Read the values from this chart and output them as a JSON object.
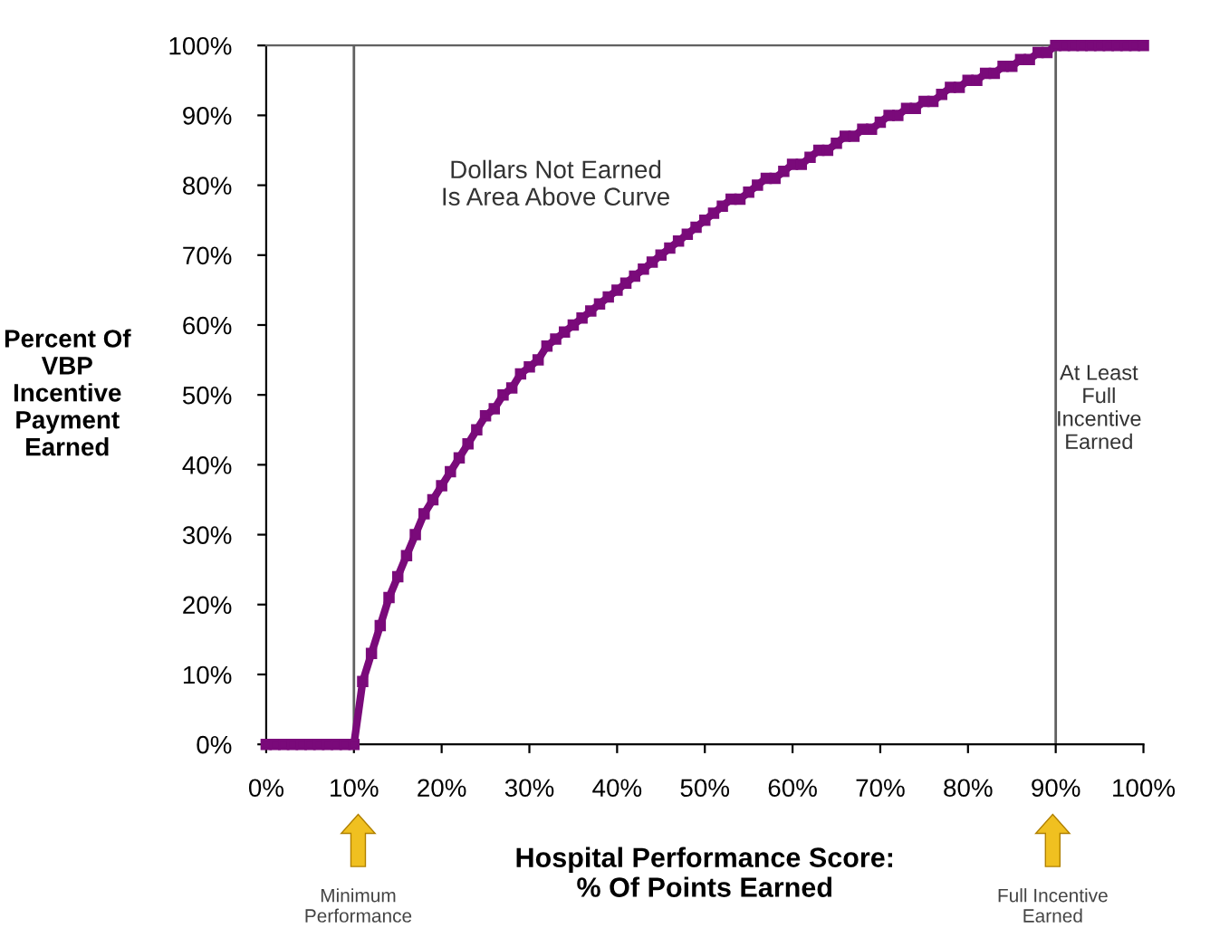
{
  "chart_data": {
    "type": "line",
    "xlabel": "Hospital Performance Score:\n% Of Points Earned",
    "ylabel": "Percent Of\nVBP\nIncentive\nPayment\nEarned",
    "x": [
      0,
      1,
      2,
      3,
      4,
      5,
      6,
      7,
      8,
      9,
      10,
      11,
      12,
      13,
      14,
      15,
      16,
      17,
      18,
      19,
      20,
      21,
      22,
      23,
      24,
      25,
      26,
      27,
      28,
      29,
      30,
      31,
      32,
      33,
      34,
      35,
      36,
      37,
      38,
      39,
      40,
      41,
      42,
      43,
      44,
      45,
      46,
      47,
      48,
      49,
      50,
      51,
      52,
      53,
      54,
      55,
      56,
      57,
      58,
      59,
      60,
      61,
      62,
      63,
      64,
      65,
      66,
      67,
      68,
      69,
      70,
      71,
      72,
      73,
      74,
      75,
      76,
      77,
      78,
      79,
      80,
      81,
      82,
      83,
      84,
      85,
      86,
      87,
      88,
      89,
      90,
      91,
      92,
      93,
      94,
      95,
      96,
      97,
      98,
      99,
      100
    ],
    "series": [
      {
        "color": "#7a0a7a",
        "values": [
          0,
          0,
          0,
          0,
          0,
          0,
          0,
          0,
          0,
          0,
          0,
          9,
          13,
          17,
          21,
          24,
          27,
          30,
          33,
          35,
          37,
          39,
          41,
          43,
          45,
          47,
          48,
          50,
          51,
          53,
          54,
          55,
          57,
          58,
          59,
          60,
          61,
          62,
          63,
          64,
          65,
          66,
          67,
          68,
          69,
          70,
          71,
          72,
          73,
          74,
          75,
          76,
          77,
          78,
          78,
          79,
          80,
          81,
          81,
          82,
          83,
          83,
          84,
          85,
          85,
          86,
          87,
          87,
          88,
          88,
          89,
          90,
          90,
          91,
          91,
          92,
          92,
          93,
          94,
          94,
          95,
          95,
          96,
          96,
          97,
          97,
          98,
          98,
          99,
          99,
          100,
          100,
          100,
          100,
          100,
          100,
          100,
          100,
          100,
          100,
          100
        ]
      }
    ],
    "marker": "square",
    "line_style": "solid",
    "xlim": [
      0,
      100
    ],
    "ylim": [
      0,
      100
    ],
    "xticks": [
      {
        "value": 0,
        "label": "0%"
      },
      {
        "value": 10,
        "label": "10%"
      },
      {
        "value": 20,
        "label": "20%"
      },
      {
        "value": 30,
        "label": "30%"
      },
      {
        "value": 40,
        "label": "40%"
      },
      {
        "value": 50,
        "label": "50%"
      },
      {
        "value": 60,
        "label": "60%"
      },
      {
        "value": 70,
        "label": "70%"
      },
      {
        "value": 80,
        "label": "80%"
      },
      {
        "value": 90,
        "label": "90%"
      },
      {
        "value": 100,
        "label": "100%"
      }
    ],
    "yticks": [
      {
        "value": 0,
        "label": "0%"
      },
      {
        "value": 10,
        "label": "10%"
      },
      {
        "value": 20,
        "label": "20%"
      },
      {
        "value": 30,
        "label": "30%"
      },
      {
        "value": 40,
        "label": "40%"
      },
      {
        "value": 50,
        "label": "50%"
      },
      {
        "value": 60,
        "label": "60%"
      },
      {
        "value": 70,
        "label": "70%"
      },
      {
        "value": 80,
        "label": "80%"
      },
      {
        "value": 90,
        "label": "90%"
      },
      {
        "value": 100,
        "label": "100%"
      }
    ],
    "ref_lines": [
      {
        "axis": "x",
        "value": 10,
        "color": "#606060"
      },
      {
        "axis": "x",
        "value": 90,
        "color": "#606060"
      }
    ],
    "annotations": [
      "Dollars Not Earned\nIs Area Above Curve",
      "At Least\nFull\nIncentive\nEarned",
      "Minimum\nPerformance",
      "Full Incentive\nEarned"
    ],
    "grid": false,
    "legend": false
  }
}
